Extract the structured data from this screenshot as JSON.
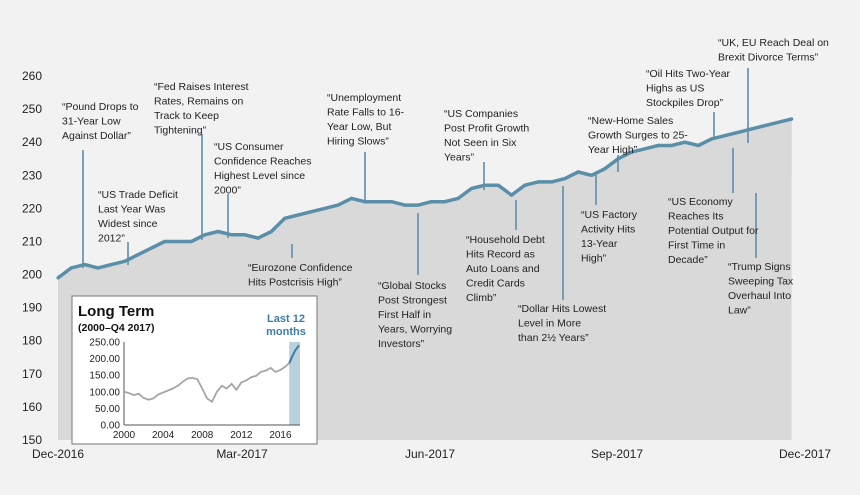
{
  "chart_data": [
    {
      "type": "area",
      "y_ticks": [
        150,
        160,
        170,
        180,
        190,
        200,
        210,
        220,
        230,
        240,
        250,
        260
      ],
      "ylim": [
        150,
        260
      ],
      "x_tick_labels": [
        "Dec-2016",
        "Mar-2017",
        "Jun-2017",
        "Sep-2017",
        "Dec-2017"
      ],
      "series": [
        {
          "x": [
            "2016-12-01",
            "2016-12-08",
            "2016-12-15",
            "2016-12-22",
            "2016-12-29",
            "2017-01-05",
            "2017-01-12",
            "2017-01-19",
            "2017-01-26",
            "2017-02-02",
            "2017-02-09",
            "2017-02-16",
            "2017-02-23",
            "2017-03-02",
            "2017-03-09",
            "2017-03-16",
            "2017-03-23",
            "2017-03-30",
            "2017-04-06",
            "2017-04-13",
            "2017-04-20",
            "2017-04-27",
            "2017-05-04",
            "2017-05-11",
            "2017-05-18",
            "2017-05-25",
            "2017-06-01",
            "2017-06-08",
            "2017-06-15",
            "2017-06-22",
            "2017-06-29",
            "2017-07-06",
            "2017-07-13",
            "2017-07-20",
            "2017-07-27",
            "2017-08-03",
            "2017-08-10",
            "2017-08-17",
            "2017-08-24",
            "2017-08-31",
            "2017-09-07",
            "2017-09-14",
            "2017-09-21",
            "2017-09-28",
            "2017-10-05",
            "2017-10-12",
            "2017-10-19",
            "2017-10-26",
            "2017-11-02",
            "2017-11-09",
            "2017-11-16",
            "2017-11-23",
            "2017-11-30",
            "2017-12-07",
            "2017-12-14",
            "2017-12-21"
          ],
          "values": [
            199,
            202,
            203,
            202,
            203,
            204,
            206,
            208,
            210,
            210,
            210,
            212,
            213,
            212,
            212,
            211,
            213,
            217,
            218,
            219,
            220,
            221,
            223,
            222,
            222,
            222,
            221,
            221,
            222,
            222,
            223,
            226,
            227,
            227,
            224,
            227,
            228,
            228,
            229,
            231,
            230,
            232,
            235,
            237,
            238,
            239,
            239,
            240,
            239,
            241,
            242,
            243,
            244,
            245,
            246,
            247
          ]
        }
      ],
      "annotations": [
        {
          "text": [
            "“Pound Drops to",
            "31-Year Low",
            "Against Dollar”"
          ]
        },
        {
          "text": [
            "“US Trade Deficit",
            "Last Year Was",
            "Widest since",
            "2012”"
          ]
        },
        {
          "text": [
            "“Fed Raises Interest",
            "Rates, Remains on",
            "Track to Keep",
            "Tightening”"
          ]
        },
        {
          "text": [
            "“US Consumer",
            "Confidence Reaches",
            "Highest Level since",
            "2000”"
          ]
        },
        {
          "text": [
            "“Eurozone Confidence",
            "Hits Postcrisis High”"
          ]
        },
        {
          "text": [
            "“Unemployment",
            "Rate Falls to 16-",
            "Year Low, But",
            "Hiring Slows”"
          ]
        },
        {
          "text": [
            "“Global Stocks",
            "Post Strongest",
            "First Half in",
            "Years, Worrying",
            "Investors”"
          ]
        },
        {
          "text": [
            "“US Companies",
            "Post Profit Growth",
            "Not Seen in Six",
            "Years”"
          ]
        },
        {
          "text": [
            "“Household Debt",
            "Hits Record as",
            "Auto Loans and",
            "Credit Cards",
            "Climb”"
          ]
        },
        {
          "text": [
            "“Dollar Hits Lowest",
            "Level in More",
            "than 2½ Years”"
          ]
        },
        {
          "text": [
            "“New-Home Sales",
            "Growth Surges to 25-",
            "Year High”"
          ]
        },
        {
          "text": [
            "“US Factory",
            "Activity Hits",
            "13-Year",
            "High”"
          ]
        },
        {
          "text": [
            "“Oil Hits Two-Year",
            "Highs as US",
            "Stockpiles Drop”"
          ]
        },
        {
          "text": [
            "“UK, EU Reach Deal on",
            "Brexit Divorce Terms”"
          ]
        },
        {
          "text": [
            "“US Economy",
            "Reaches Its",
            "Potential Output for",
            "First Time in",
            "Decade”"
          ]
        },
        {
          "text": [
            "“Trump Signs",
            "Sweeping Tax",
            "Overhaul Into",
            "Law”"
          ]
        }
      ],
      "colors": {
        "line": "#5b8fa8",
        "area": "#d9d9d9"
      }
    },
    {
      "type": "line",
      "title": "Long Term",
      "subtitle": "(2000–Q4 2017)",
      "highlight_label": [
        "Last 12",
        "months"
      ],
      "y_tick_labels": [
        "0.00",
        "50.00",
        "100.00",
        "150.00",
        "200.00",
        "250.00"
      ],
      "y_ticks": [
        0,
        50,
        100,
        150,
        200,
        250
      ],
      "ylim": [
        0,
        250
      ],
      "x_tick_labels": [
        "2000",
        "2004",
        "2008",
        "2012",
        "2016"
      ],
      "x_ticks": [
        2000,
        2004,
        2008,
        2012,
        2016
      ],
      "xlim": [
        2000,
        2018
      ],
      "series": [
        {
          "x": [
            2000,
            2000.5,
            2001,
            2001.5,
            2002,
            2002.5,
            2003,
            2003.5,
            2004,
            2004.5,
            2005,
            2005.5,
            2006,
            2006.5,
            2007,
            2007.5,
            2008,
            2008.5,
            2009,
            2009.5,
            2010,
            2010.5,
            2011,
            2011.5,
            2012,
            2012.5,
            2013,
            2013.5,
            2014,
            2014.5,
            2015,
            2015.5,
            2016,
            2016.5,
            2016.9,
            2017.2,
            2017.5,
            2017.9
          ],
          "values": [
            100,
            96,
            90,
            94,
            82,
            76,
            80,
            92,
            98,
            104,
            110,
            118,
            130,
            140,
            142,
            138,
            110,
            80,
            70,
            100,
            118,
            110,
            124,
            106,
            128,
            134,
            144,
            148,
            160,
            164,
            172,
            160,
            166,
            176,
            186,
            206,
            224,
            240
          ]
        }
      ],
      "colors": {
        "line": "#a6a6a6",
        "last12": "#3d7ea6",
        "shade": "#b9d0dd"
      }
    }
  ]
}
